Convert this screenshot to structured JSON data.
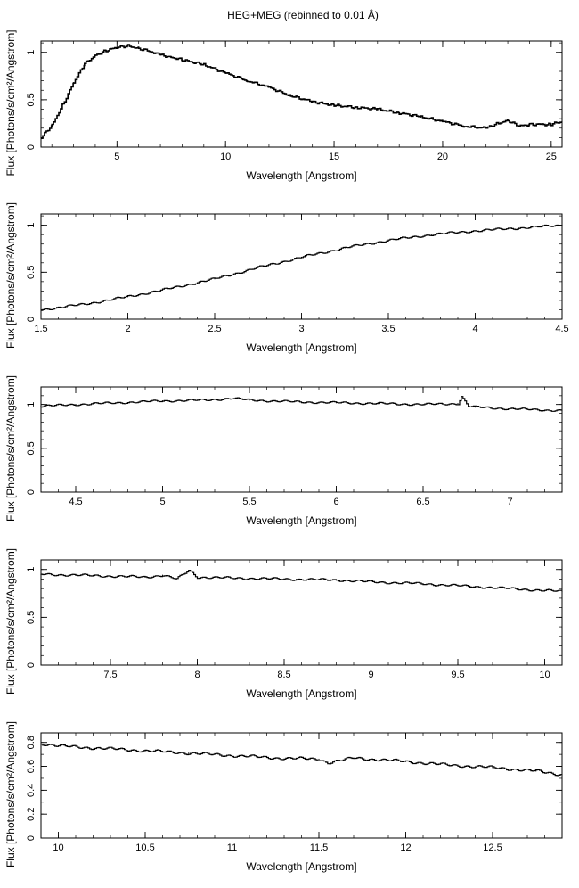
{
  "figure": {
    "title": "HEG+MEG (rebinned to 0.01 Å)"
  },
  "chart_data": [
    {
      "type": "line",
      "title": "HEG+MEG (rebinned to 0.01 Å)",
      "xlabel": "Wavelength [Angstrom]",
      "ylabel": "Flux [Photons/s/cm²/Angstrom]",
      "xlim": [
        1.5,
        25.5
      ],
      "ylim": [
        0,
        1.12
      ],
      "xticks": [
        5,
        10,
        15,
        20,
        25
      ],
      "yticks": [
        0,
        0.5,
        1
      ],
      "grid": false,
      "series": [
        {
          "x": [
            1.5,
            2,
            2.5,
            3,
            3.5,
            4,
            4.5,
            5,
            5.5,
            6,
            6.7,
            7,
            7.5,
            8,
            9,
            10,
            11,
            12,
            13,
            14,
            15,
            16,
            17,
            18,
            19,
            20,
            21,
            22,
            22.5,
            23,
            23.5,
            24,
            25,
            25.5
          ],
          "y": [
            0.1,
            0.23,
            0.45,
            0.68,
            0.88,
            0.97,
            1.02,
            1.05,
            1.07,
            1.04,
            1.0,
            0.97,
            0.95,
            0.92,
            0.87,
            0.78,
            0.7,
            0.63,
            0.54,
            0.48,
            0.44,
            0.42,
            0.4,
            0.36,
            0.32,
            0.27,
            0.22,
            0.2,
            0.25,
            0.28,
            0.22,
            0.24,
            0.24,
            0.27
          ]
        }
      ]
    },
    {
      "type": "line",
      "xlabel": "Wavelength [Angstrom]",
      "ylabel": "Flux [Photons/s/cm²/Angstrom]",
      "xlim": [
        1.5,
        4.5
      ],
      "ylim": [
        0,
        1.12
      ],
      "xticks": [
        1.5,
        2,
        2.5,
        3,
        3.5,
        4,
        4.5
      ],
      "yticks": [
        0,
        0.5,
        1
      ],
      "grid": false,
      "series": [
        {
          "x": [
            1.5,
            1.75,
            2,
            2.25,
            2.5,
            2.75,
            3,
            3.25,
            3.5,
            3.75,
            4,
            4.25,
            4.5
          ],
          "y": [
            0.1,
            0.16,
            0.24,
            0.33,
            0.43,
            0.55,
            0.66,
            0.76,
            0.84,
            0.9,
            0.94,
            0.97,
            1.0
          ]
        }
      ]
    },
    {
      "type": "line",
      "xlabel": "Wavelength [Angstrom]",
      "ylabel": "Flux [Photons/s/cm²/Angstrom]",
      "xlim": [
        4.3,
        7.3
      ],
      "ylim": [
        0,
        1.2
      ],
      "xticks": [
        4.5,
        5,
        5.5,
        6,
        6.5,
        7
      ],
      "yticks": [
        0,
        0.5,
        1
      ],
      "grid": false,
      "series": [
        {
          "x": [
            4.3,
            4.5,
            4.75,
            5,
            5.25,
            5.4,
            5.5,
            5.75,
            6,
            6.25,
            6.5,
            6.7,
            6.72,
            6.76,
            6.8,
            7,
            7.3
          ],
          "y": [
            0.98,
            1.0,
            1.02,
            1.04,
            1.05,
            1.07,
            1.05,
            1.03,
            1.02,
            1.01,
            1.0,
            1.01,
            1.09,
            0.98,
            0.97,
            0.95,
            0.93
          ]
        }
      ]
    },
    {
      "type": "line",
      "xlabel": "Wavelength [Angstrom]",
      "ylabel": "Flux [Photons/s/cm²/Angstrom]",
      "xlim": [
        7.1,
        10.1
      ],
      "ylim": [
        0,
        1.1
      ],
      "xticks": [
        7.5,
        8,
        8.5,
        9,
        9.5,
        10
      ],
      "yticks": [
        0,
        0.5,
        1
      ],
      "grid": false,
      "series": [
        {
          "x": [
            7.1,
            7.3,
            7.5,
            7.7,
            7.8,
            7.88,
            7.95,
            8.0,
            8.2,
            8.5,
            8.8,
            9.0,
            9.3,
            9.5,
            9.8,
            10.1
          ],
          "y": [
            0.95,
            0.94,
            0.93,
            0.92,
            0.94,
            0.9,
            0.99,
            0.92,
            0.91,
            0.9,
            0.89,
            0.87,
            0.85,
            0.83,
            0.8,
            0.77
          ]
        }
      ]
    },
    {
      "type": "line",
      "xlabel": "Wavelength [Angstrom]",
      "ylabel": "Flux [Photons/s/cm²/Angstrom]",
      "xlim": [
        9.9,
        12.9
      ],
      "ylim": [
        0,
        0.88
      ],
      "xticks": [
        10,
        10.5,
        11,
        11.5,
        12,
        12.5
      ],
      "yticks": [
        0,
        0.2,
        0.4,
        0.6,
        0.8
      ],
      "grid": false,
      "series": [
        {
          "x": [
            9.9,
            10,
            10.25,
            10.5,
            10.75,
            11,
            11.25,
            11.5,
            11.55,
            11.7,
            12,
            12.25,
            12.5,
            12.75,
            12.9
          ],
          "y": [
            0.79,
            0.77,
            0.75,
            0.73,
            0.71,
            0.69,
            0.67,
            0.66,
            0.63,
            0.67,
            0.64,
            0.61,
            0.59,
            0.56,
            0.53
          ]
        }
      ]
    }
  ]
}
